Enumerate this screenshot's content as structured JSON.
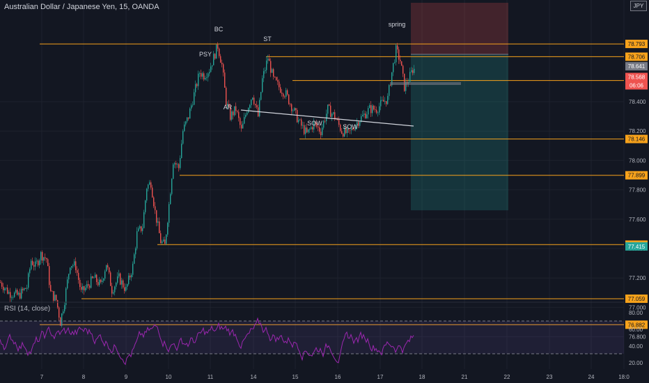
{
  "header": {
    "title": "Australian Dollar / Japanese Yen, 15, OANDA",
    "currency": "JPY"
  },
  "rsi": {
    "title": "RSI (14, close)",
    "ticks": [
      "80.00",
      "60.00",
      "40.00",
      "20.00"
    ]
  },
  "colors": {
    "up": "#26a69a",
    "down": "#ef5350",
    "level": "#f7a21b",
    "rsi": "#9c27b0",
    "bg": "#131722"
  },
  "chart_data": {
    "type": "candlestick",
    "x_ticks": [
      "7",
      "8",
      "9",
      "10",
      "11",
      "14",
      "15",
      "16",
      "17",
      "18",
      "21",
      "22",
      "23",
      "24",
      "18:0"
    ],
    "y_ticks": [
      "78.400",
      "78.200",
      "78.000",
      "77.800",
      "77.600",
      "77.400",
      "77.200",
      "77.000",
      "76.800"
    ],
    "levels": [
      "78.793",
      "78.706",
      "78.544",
      "78.146",
      "77.899",
      "77.427",
      "77.059",
      "76.882"
    ],
    "last_price": "78.641",
    "prev_price": "78.568",
    "countdown": "06:06",
    "target_price": "77.415",
    "annotations": [
      "BC",
      "PSY",
      "ST",
      "AR",
      "SOW",
      "SOW",
      "spring"
    ],
    "path": [
      [
        0,
        77.17
      ],
      [
        12,
        77.1
      ],
      [
        26,
        77.08
      ],
      [
        38,
        77.14
      ],
      [
        44,
        77.32
      ],
      [
        50,
        77.28
      ],
      [
        58,
        77.36
      ],
      [
        66,
        77.33
      ],
      [
        72,
        77.1
      ],
      [
        80,
        77.05
      ],
      [
        86,
        76.9
      ],
      [
        92,
        77.05
      ],
      [
        100,
        77.3
      ],
      [
        108,
        77.28
      ],
      [
        116,
        77.1
      ],
      [
        124,
        77.14
      ],
      [
        134,
        77.2
      ],
      [
        144,
        77.15
      ],
      [
        152,
        77.3
      ],
      [
        160,
        77.12
      ],
      [
        170,
        77.2
      ],
      [
        180,
        77.12
      ],
      [
        190,
        77.28
      ],
      [
        196,
        77.5
      ],
      [
        204,
        77.55
      ],
      [
        210,
        77.82
      ],
      [
        216,
        77.85
      ],
      [
        222,
        77.65
      ],
      [
        230,
        77.45
      ],
      [
        236,
        77.42
      ],
      [
        242,
        77.7
      ],
      [
        248,
        78.0
      ],
      [
        256,
        77.95
      ],
      [
        262,
        78.2
      ],
      [
        270,
        78.3
      ],
      [
        278,
        78.45
      ],
      [
        286,
        78.6
      ],
      [
        292,
        78.58
      ],
      [
        300,
        78.62
      ],
      [
        306,
        78.7
      ],
      [
        312,
        78.78
      ],
      [
        318,
        78.65
      ],
      [
        324,
        78.4
      ],
      [
        330,
        78.3
      ],
      [
        338,
        78.35
      ],
      [
        346,
        78.2
      ],
      [
        354,
        78.35
      ],
      [
        362,
        78.45
      ],
      [
        370,
        78.3
      ],
      [
        376,
        78.55
      ],
      [
        384,
        78.7
      ],
      [
        392,
        78.55
      ],
      [
        400,
        78.5
      ],
      [
        410,
        78.45
      ],
      [
        420,
        78.35
      ],
      [
        430,
        78.25
      ],
      [
        440,
        78.18
      ],
      [
        450,
        78.25
      ],
      [
        460,
        78.2
      ],
      [
        470,
        78.35
      ],
      [
        480,
        78.3
      ],
      [
        490,
        78.2
      ],
      [
        500,
        78.18
      ],
      [
        510,
        78.25
      ],
      [
        520,
        78.3
      ],
      [
        530,
        78.35
      ],
      [
        540,
        78.35
      ],
      [
        550,
        78.4
      ],
      [
        556,
        78.42
      ],
      [
        562,
        78.6
      ],
      [
        568,
        78.75
      ],
      [
        574,
        78.68
      ],
      [
        580,
        78.5
      ],
      [
        586,
        78.55
      ],
      [
        592,
        78.62
      ]
    ]
  }
}
